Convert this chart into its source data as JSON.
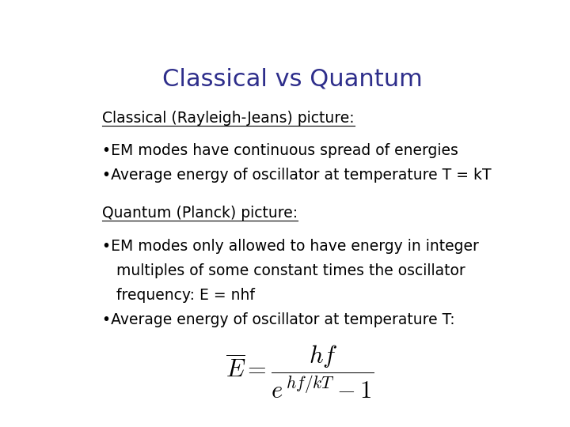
{
  "title": "Classical vs Quantum",
  "title_color": "#2E2E8B",
  "title_fontsize": 22,
  "background_color": "#ffffff",
  "section1_heading": "Classical (Rayleigh-Jeans) picture:",
  "section1_bullets": [
    "•EM modes have continuous spread of energies",
    "•Average energy of oscillator at temperature T = kT"
  ],
  "section2_heading": "Quantum (Planck) picture:",
  "section2_bullets": [
    "•EM modes only allowed to have energy in integer",
    "   multiples of some constant times the oscillator",
    "   frequency: E = nhf",
    "•Average energy of oscillator at temperature T:"
  ],
  "body_fontsize": 13.5,
  "heading_fontsize": 13.5,
  "formula_fontsize": 22
}
